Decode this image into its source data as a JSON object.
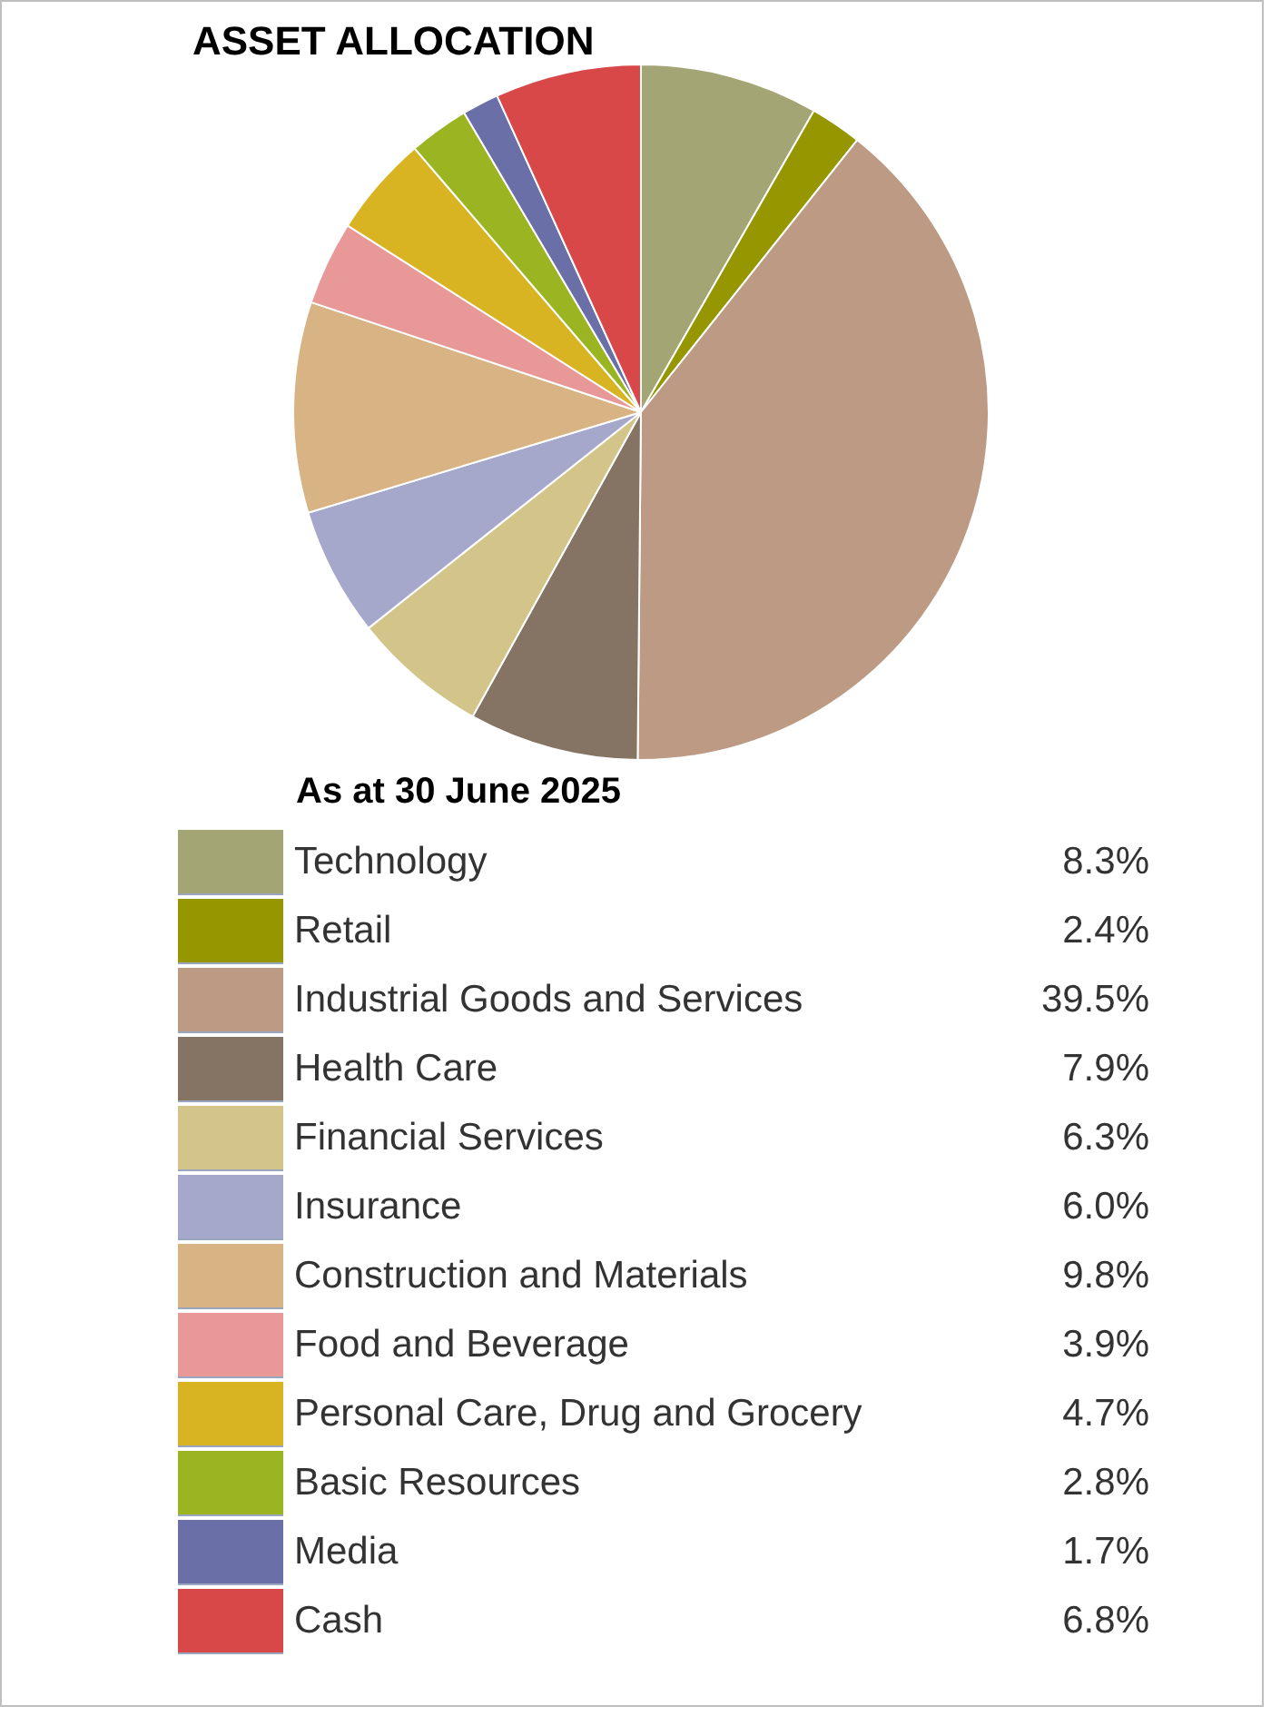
{
  "chart_data": {
    "type": "pie",
    "title": "ASSET ALLOCATION",
    "subtitle": "As at 30 June 2025",
    "categories": [
      "Technology",
      "Retail",
      "Industrial Goods and Services",
      "Health Care",
      "Financial Services",
      "Insurance",
      "Construction and Materials",
      "Food and Beverage",
      "Personal Care, Drug and Grocery",
      "Basic Resources",
      "Media",
      "Cash"
    ],
    "values": [
      8.3,
      2.4,
      39.5,
      7.9,
      6.3,
      6.0,
      9.8,
      3.9,
      4.7,
      2.8,
      1.7,
      6.8
    ],
    "value_labels": [
      "8.3%",
      "2.4%",
      "39.5%",
      "7.9%",
      "6.3%",
      "6.0%",
      "9.8%",
      "3.9%",
      "4.7%",
      "2.8%",
      "1.7%",
      "6.8%"
    ],
    "colors": [
      "#a3a574",
      "#959600",
      "#bc9a84",
      "#857464",
      "#d3c489",
      "#a5a8cb",
      "#d8b384",
      "#e99898",
      "#d8b322",
      "#9bb421",
      "#6a6fa8",
      "#d94848"
    ],
    "legend": "bottom"
  }
}
